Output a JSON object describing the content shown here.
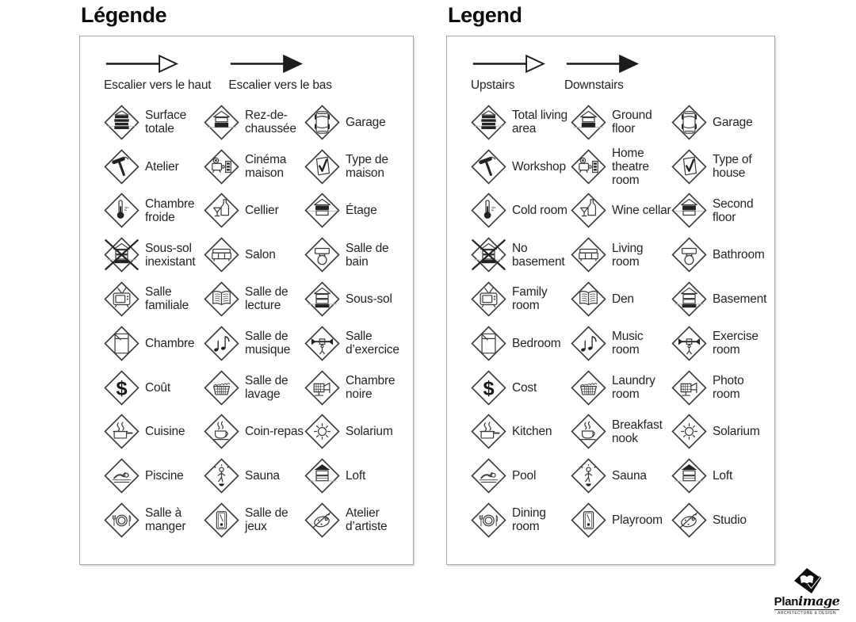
{
  "panels": [
    {
      "id": "fr",
      "title": "Légende",
      "arrows": [
        {
          "style": "outline",
          "label": "Escalier vers le haut"
        },
        {
          "style": "filled",
          "label": "Escalier vers le bas"
        }
      ],
      "items": [
        {
          "icon": "total-area",
          "label": "Surface totale"
        },
        {
          "icon": "ground-floor",
          "label": "Rez-de-chaussée"
        },
        {
          "icon": "garage",
          "label": "Garage"
        },
        {
          "icon": "workshop",
          "label": "Atelier"
        },
        {
          "icon": "home-theatre",
          "label": "Cinéma maison"
        },
        {
          "icon": "house-type",
          "label": "Type de maison"
        },
        {
          "icon": "cold-room",
          "label": "Chambre froide"
        },
        {
          "icon": "wine-cellar",
          "label": "Cellier"
        },
        {
          "icon": "second-floor",
          "label": "Étage"
        },
        {
          "icon": "no-basement",
          "label": "Sous-sol inexistant"
        },
        {
          "icon": "living-room",
          "label": "Salon"
        },
        {
          "icon": "bathroom",
          "label": "Salle de bain"
        },
        {
          "icon": "family-room",
          "label": "Salle familiale"
        },
        {
          "icon": "den",
          "label": "Salle de lecture"
        },
        {
          "icon": "basement",
          "label": "Sous-sol"
        },
        {
          "icon": "bedroom",
          "label": "Chambre"
        },
        {
          "icon": "music-room",
          "label": "Salle de musique"
        },
        {
          "icon": "exercise-room",
          "label": "Salle d’exercice"
        },
        {
          "icon": "cost",
          "label": "Coût"
        },
        {
          "icon": "laundry-room",
          "label": "Salle de lavage"
        },
        {
          "icon": "photo-room",
          "label": "Chambre noire"
        },
        {
          "icon": "kitchen",
          "label": "Cuisine"
        },
        {
          "icon": "breakfast-nook",
          "label": "Coin-repas"
        },
        {
          "icon": "solarium",
          "label": "Solarium"
        },
        {
          "icon": "pool",
          "label": "Piscine"
        },
        {
          "icon": "sauna",
          "label": "Sauna"
        },
        {
          "icon": "loft",
          "label": "Loft"
        },
        {
          "icon": "dining-room",
          "label": "Salle à manger"
        },
        {
          "icon": "playroom",
          "label": "Salle de jeux"
        },
        {
          "icon": "studio",
          "label": "Atelier d’artiste"
        }
      ]
    },
    {
      "id": "en",
      "title": "Legend",
      "arrows": [
        {
          "style": "outline",
          "label": "Upstairs"
        },
        {
          "style": "filled",
          "label": "Downstairs"
        }
      ],
      "items": [
        {
          "icon": "total-area",
          "label": "Total living area"
        },
        {
          "icon": "ground-floor",
          "label": "Ground floor"
        },
        {
          "icon": "garage",
          "label": "Garage"
        },
        {
          "icon": "workshop",
          "label": "Workshop"
        },
        {
          "icon": "home-theatre",
          "label": "Home theatre room"
        },
        {
          "icon": "house-type",
          "label": "Type of house"
        },
        {
          "icon": "cold-room",
          "label": "Cold room"
        },
        {
          "icon": "wine-cellar",
          "label": "Wine cellar"
        },
        {
          "icon": "second-floor",
          "label": "Second floor"
        },
        {
          "icon": "no-basement",
          "label": "No basement"
        },
        {
          "icon": "living-room",
          "label": "Living room"
        },
        {
          "icon": "bathroom",
          "label": "Bathroom"
        },
        {
          "icon": "family-room",
          "label": "Family room"
        },
        {
          "icon": "den",
          "label": "Den"
        },
        {
          "icon": "basement",
          "label": "Basement"
        },
        {
          "icon": "bedroom",
          "label": "Bedroom"
        },
        {
          "icon": "music-room",
          "label": "Music room"
        },
        {
          "icon": "exercise-room",
          "label": "Exercise room"
        },
        {
          "icon": "cost",
          "label": "Cost"
        },
        {
          "icon": "laundry-room",
          "label": "Laundry room"
        },
        {
          "icon": "photo-room",
          "label": "Photo room"
        },
        {
          "icon": "kitchen",
          "label": "Kitchen"
        },
        {
          "icon": "breakfast-nook",
          "label": "Breakfast nook"
        },
        {
          "icon": "solarium",
          "label": "Solarium"
        },
        {
          "icon": "pool",
          "label": "Pool"
        },
        {
          "icon": "sauna",
          "label": "Sauna"
        },
        {
          "icon": "loft",
          "label": "Loft"
        },
        {
          "icon": "dining-room",
          "label": "Dining room"
        },
        {
          "icon": "playroom",
          "label": "Playroom"
        },
        {
          "icon": "studio",
          "label": "Studio"
        }
      ]
    }
  ],
  "logo": {
    "brand_bold": "Plan",
    "brand_italic": "image",
    "tagline": "ARCHITECTURE & DESIGN"
  },
  "colors": {
    "ink": "#1c1c1c",
    "panel_border": "#a8a8a8",
    "gray_line": "#b9b9b9"
  }
}
